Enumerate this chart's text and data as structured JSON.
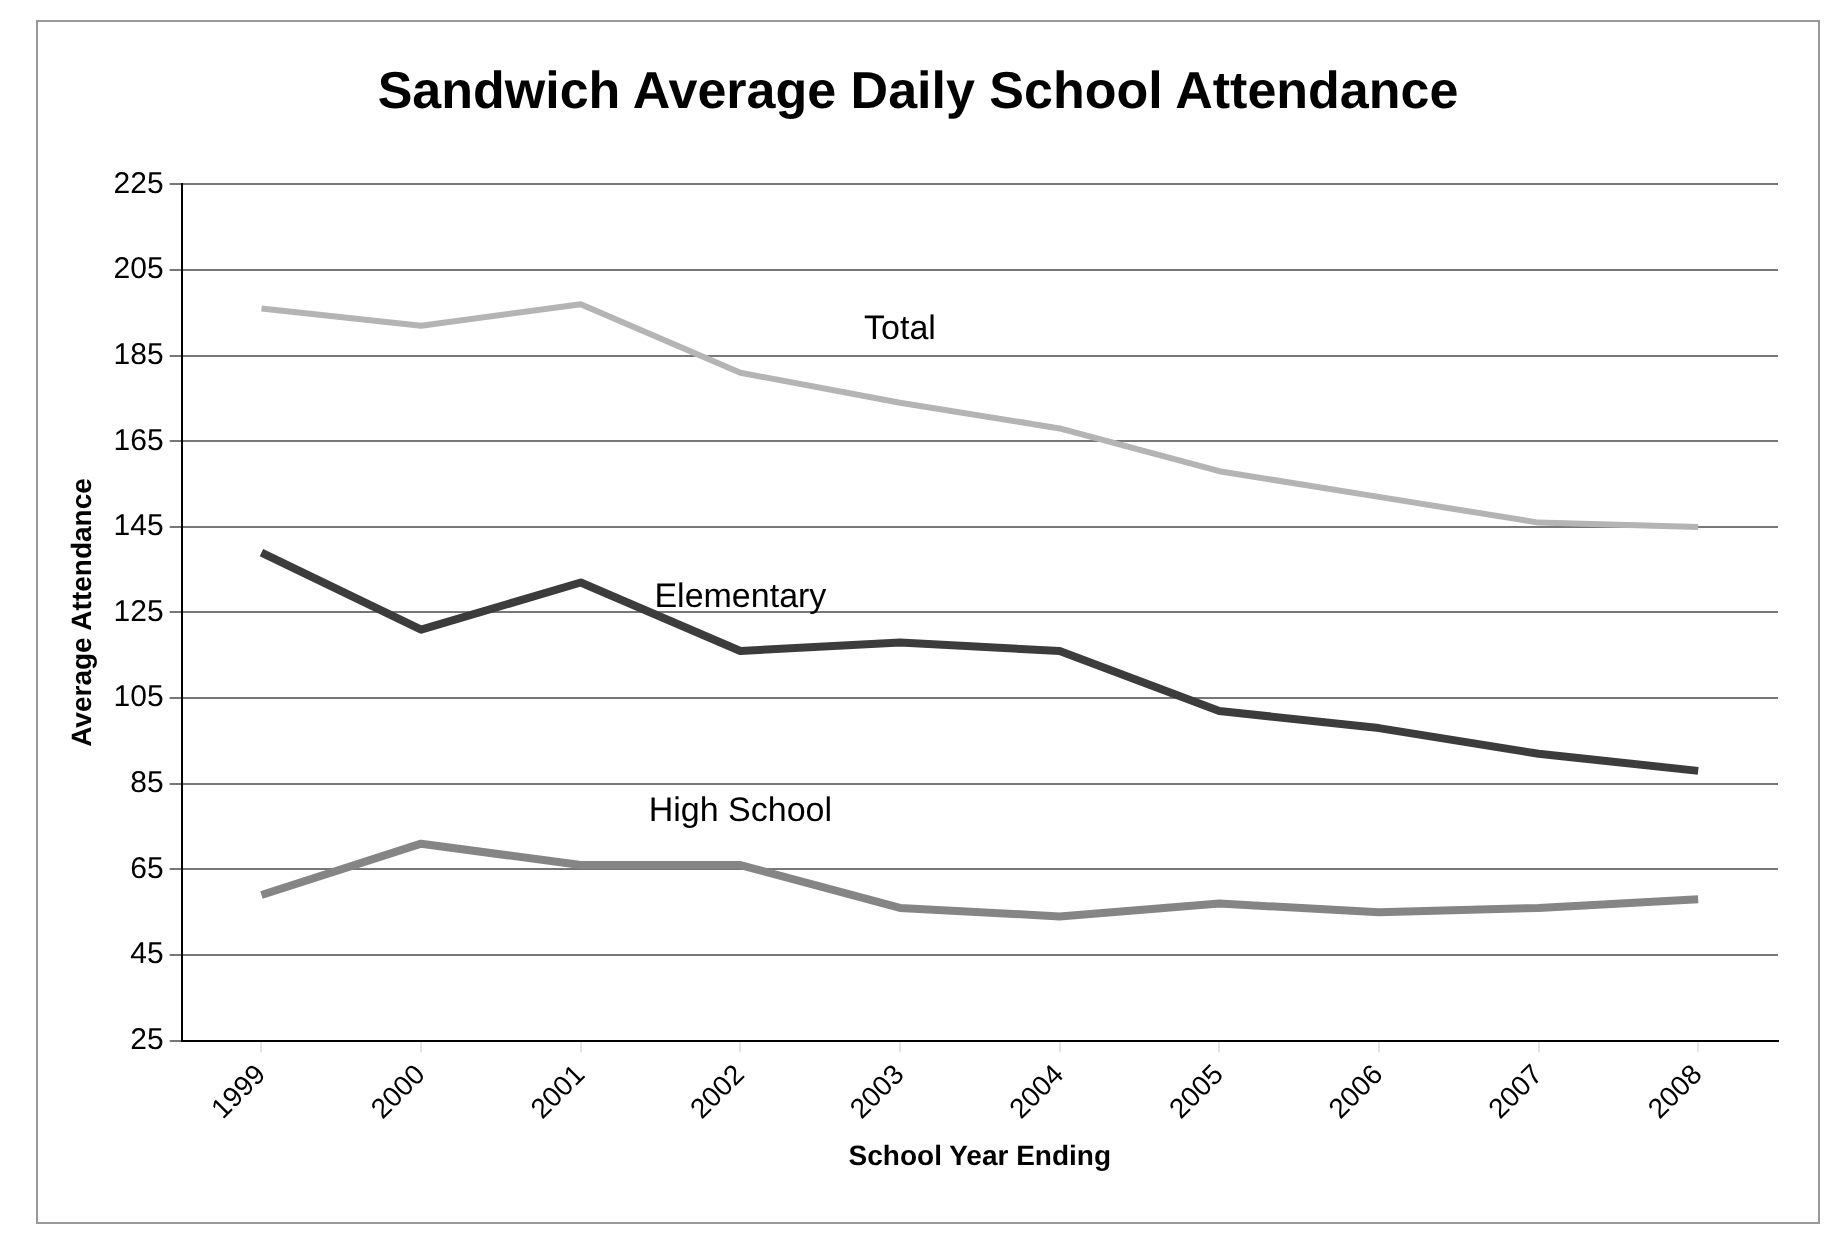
{
  "chart_data": {
    "type": "line",
    "title": "Sandwich Average Daily School Attendance",
    "xlabel": "School Year Ending",
    "ylabel": "Average Attendance",
    "categories": [
      "1999",
      "2000",
      "2001",
      "2002",
      "2003",
      "2004",
      "2005",
      "2006",
      "2007",
      "2008"
    ],
    "series": [
      {
        "name": "Total",
        "color": "#b4b4b4",
        "values": [
          196,
          192,
          197,
          181,
          174,
          168,
          158,
          152,
          146,
          145
        ]
      },
      {
        "name": "Elementary",
        "color": "#3c3c3c",
        "values": [
          139,
          121,
          132,
          116,
          118,
          116,
          102,
          98,
          92,
          88
        ]
      },
      {
        "name": "High School",
        "color": "#858585",
        "values": [
          59,
          71,
          66,
          66,
          56,
          54,
          57,
          55,
          56,
          58
        ]
      }
    ],
    "ylim": [
      25,
      225
    ],
    "yticks": [
      25,
      45,
      65,
      85,
      105,
      125,
      145,
      165,
      185,
      205,
      225
    ],
    "grid": "y",
    "legend": false,
    "marker": "none",
    "line_style": "solid"
  }
}
